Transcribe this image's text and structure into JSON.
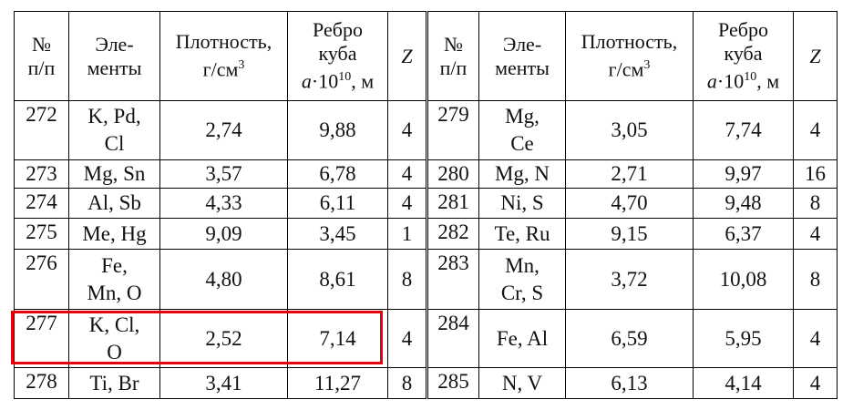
{
  "header": [
    [
      [
        "№"
      ],
      [
        "п/п"
      ]
    ],
    [
      [
        "Эле-"
      ],
      [
        "менты"
      ]
    ],
    [
      [
        "Плотность,"
      ],
      [
        "г/см",
        {
          "sup": "3"
        }
      ]
    ],
    [
      [
        "Ребро"
      ],
      [
        "куба"
      ],
      [
        {
          "i": "a"
        },
        "·10",
        {
          "sup": "10"
        },
        ", м"
      ]
    ],
    [
      [
        {
          "i": "Z"
        }
      ]
    ],
    [
      [
        "№"
      ],
      [
        "п/п"
      ]
    ],
    [
      [
        "Эле-"
      ],
      [
        "менты"
      ]
    ],
    [
      [
        "Плотность,"
      ],
      [
        "г/см",
        {
          "sup": "3"
        }
      ]
    ],
    [
      [
        "Ребро"
      ],
      [
        "куба"
      ],
      [
        {
          "i": "a"
        },
        "·10",
        {
          "sup": "10"
        },
        ", м"
      ]
    ],
    [
      [
        {
          "i": "Z"
        }
      ]
    ]
  ],
  "rows": [
    [
      "272",
      "K, Pd,\nCl",
      "2,74",
      "9,88",
      "4",
      "279",
      "Mg,\nCe",
      "3,05",
      "7,74",
      "4"
    ],
    [
      "273",
      "Mg, Sn",
      "3,57",
      "6,78",
      "4",
      "280",
      "Mg, N",
      "2,71",
      "9,97",
      "16"
    ],
    [
      "274",
      "Al, Sb",
      "4,33",
      "6,11",
      "4",
      "281",
      "Ni, S",
      "4,70",
      "9,48",
      "8"
    ],
    [
      "275",
      "Me, Hg",
      "9,09",
      "3,45",
      "1",
      "282",
      "Te, Ru",
      "9,15",
      "6,37",
      "4"
    ],
    [
      "276",
      "Fe,\nMn, O",
      "4,80",
      "8,61",
      "8",
      "283",
      "Mn,\nCr, S",
      "3,72",
      "10,08",
      "8"
    ],
    [
      "277",
      "K, Cl,\nO",
      "2,52",
      "7,14",
      "4",
      "284",
      "Fe, Al",
      "6,59",
      "5,95",
      "4"
    ],
    [
      "278",
      "Ti, Br",
      "3,41",
      "11,27",
      "8",
      "285",
      "N, V",
      "6,13",
      "4,14",
      "4"
    ]
  ]
}
